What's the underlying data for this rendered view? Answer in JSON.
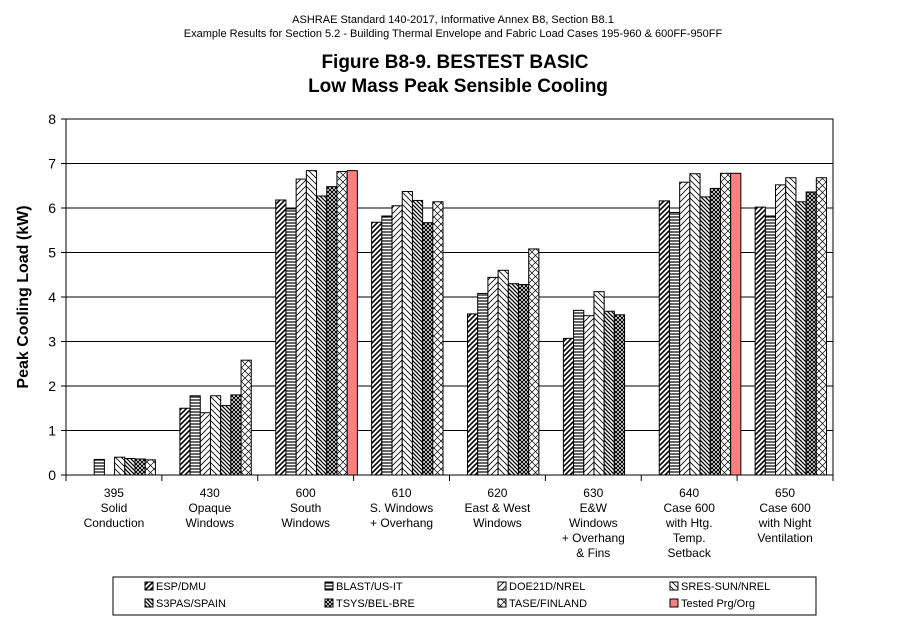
{
  "header": {
    "line1": "ASHRAE Standard 140-2017, Informative Annex B8, Section B8.1",
    "line2": "Example Results for Section 5.2 - Building Thermal Envelope and Fabric Load Cases 195-960 & 600FF-950FF",
    "title1": "Figure B8-9.  BESTEST BASIC",
    "title2": "Low Mass Peak Sensible Cooling"
  },
  "chart_data": {
    "type": "bar",
    "ylabel": "Peak Cooling Load (kW)",
    "ylim": [
      0,
      8
    ],
    "yticks": [
      "0",
      "1",
      "2",
      "3",
      "4",
      "5",
      "6",
      "7",
      "8"
    ],
    "grid": "horizontal",
    "legend_position": "bottom",
    "categories": [
      [
        "395",
        "Solid",
        "Conduction"
      ],
      [
        "430",
        "Opaque",
        "Windows"
      ],
      [
        "600",
        "South",
        "Windows"
      ],
      [
        "610",
        "S. Windows",
        "+ Overhang"
      ],
      [
        "620",
        "East & West",
        "Windows"
      ],
      [
        "630",
        "E&W",
        "Windows",
        "+ Overhang",
        "& Fins"
      ],
      [
        "640",
        "Case 600",
        "with Htg.",
        "Temp.",
        "Setback"
      ],
      [
        "650",
        "Case 600",
        "with Night",
        "Ventilation"
      ]
    ],
    "series": [
      {
        "name": "ESP/DMU",
        "pattern": "diag-fwd",
        "values": [
          0.0,
          1.5,
          6.18,
          5.68,
          3.62,
          3.07,
          6.16,
          6.02
        ]
      },
      {
        "name": "BLAST/US-IT",
        "pattern": "horizontal",
        "values": [
          0.35,
          1.78,
          5.98,
          5.82,
          4.08,
          3.7,
          5.9,
          5.82
        ]
      },
      {
        "name": "DOE21D/NREL",
        "pattern": "diag-fwd-light",
        "values": [
          0.0,
          1.4,
          6.65,
          6.05,
          4.44,
          3.58,
          6.58,
          6.52
        ]
      },
      {
        "name": "SRES-SUN/NREL",
        "pattern": "diag-back",
        "values": [
          0.4,
          1.78,
          6.84,
          6.37,
          4.6,
          4.12,
          6.77,
          6.68
        ]
      },
      {
        "name": "S3PAS/SPAIN",
        "pattern": "diag-back-dense",
        "values": [
          0.37,
          1.56,
          6.27,
          6.17,
          4.3,
          3.68,
          6.25,
          6.14
        ]
      },
      {
        "name": "TSYS/BEL-BRE",
        "pattern": "crosshatch",
        "values": [
          0.36,
          1.8,
          6.48,
          5.67,
          4.28,
          3.6,
          6.44,
          6.36
        ]
      },
      {
        "name": "TASE/FINLAND",
        "pattern": "diag-cross",
        "values": [
          0.34,
          2.58,
          6.82,
          6.14,
          5.08,
          0.0,
          6.78,
          6.68
        ]
      },
      {
        "name": "Tested Prg/Org",
        "pattern": "solid",
        "color": "#ff7f7f",
        "values": [
          null,
          null,
          6.84,
          null,
          null,
          null,
          6.78,
          null
        ]
      }
    ]
  }
}
